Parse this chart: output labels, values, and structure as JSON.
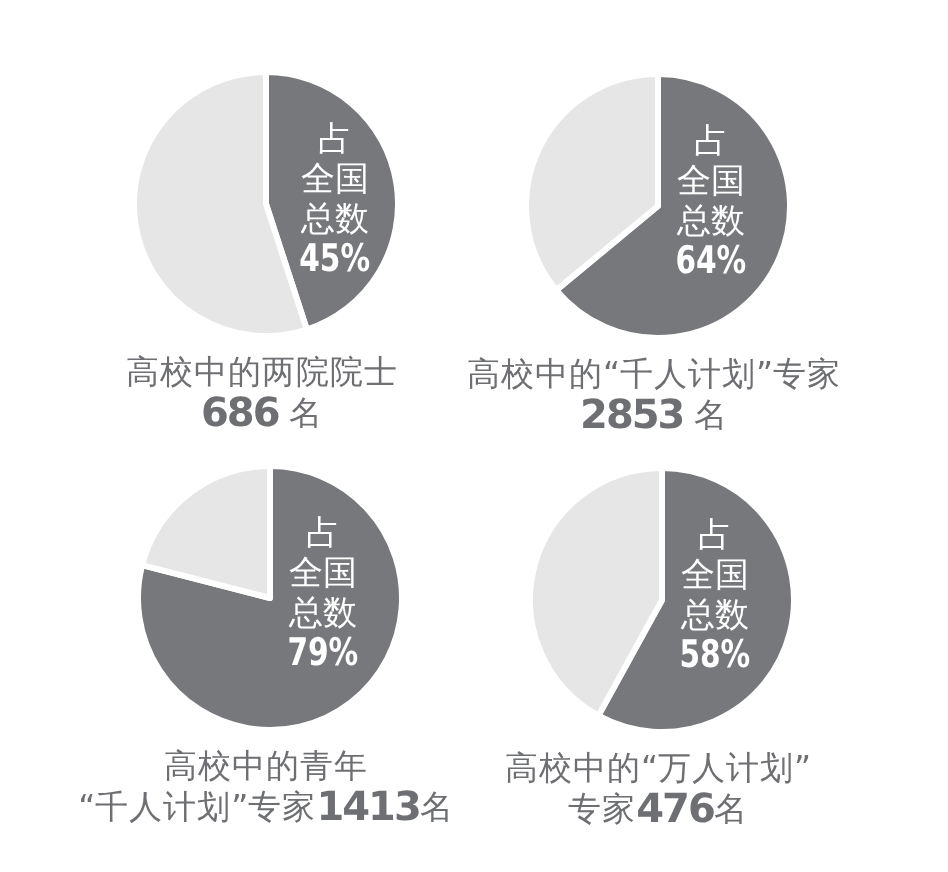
{
  "chart_data": [
    {
      "type": "pie",
      "title": "高校中的两院院士",
      "subtitle": "686 名",
      "categories": [
        "占全国总数",
        null
      ],
      "values": [
        45,
        55
      ],
      "colors": [
        "#77787b",
        "#e6e6e7"
      ],
      "value_labels": [
        "45%",
        null
      ]
    },
    {
      "type": "pie",
      "title": "高校中的“千人计划”专家",
      "subtitle": "2853 名",
      "categories": [
        "占全国总数",
        null
      ],
      "values": [
        64,
        36
      ],
      "colors": [
        "#77787b",
        "#e6e6e7"
      ],
      "value_labels": [
        "64%",
        null
      ]
    },
    {
      "type": "pie",
      "title": "高校中的青年",
      "subtitle": "“千人计划”专家1413名",
      "categories": [
        "占全国总数",
        null
      ],
      "values": [
        79,
        21
      ],
      "colors": [
        "#77787b",
        "#e6e6e7"
      ],
      "value_labels": [
        "79%",
        null
      ]
    },
    {
      "type": "pie",
      "title": "高校中的“万人计划”",
      "subtitle": "专家476名",
      "categories": [
        "占全国总数",
        null
      ],
      "values": [
        58,
        42
      ],
      "colors": [
        "#77787b",
        "#e6e6e7"
      ],
      "value_labels": [
        "58%",
        null
      ]
    }
  ]
}
